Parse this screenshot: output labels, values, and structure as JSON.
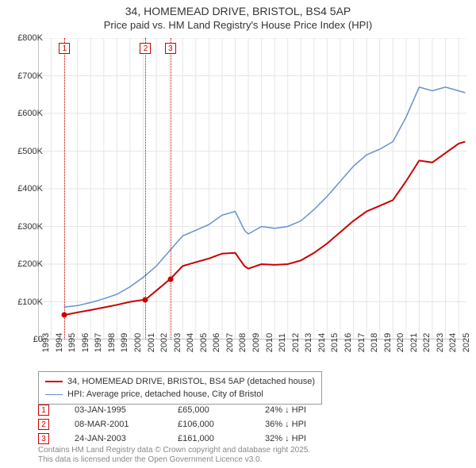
{
  "title": "34, HOMEMEAD DRIVE, BRISTOL, BS4 5AP",
  "subtitle": "Price paid vs. HM Land Registry's House Price Index (HPI)",
  "chart": {
    "type": "line",
    "background_color": "#ffffff",
    "grid_color": "#e6e6e6",
    "axis_color": "#888888",
    "font_family": "Arial",
    "tick_fontsize": 11,
    "title_fontsize": 14,
    "x": {
      "min": 1993,
      "max": 2025.6,
      "ticks": [
        1993,
        1994,
        1995,
        1996,
        1997,
        1998,
        1999,
        2000,
        2001,
        2002,
        2003,
        2004,
        2005,
        2006,
        2007,
        2008,
        2009,
        2010,
        2011,
        2012,
        2013,
        2014,
        2015,
        2016,
        2017,
        2018,
        2019,
        2020,
        2021,
        2022,
        2023,
        2024,
        2025
      ]
    },
    "y": {
      "min": 0,
      "max": 800000,
      "ticks": [
        0,
        100000,
        200000,
        300000,
        400000,
        500000,
        600000,
        700000,
        800000
      ],
      "tick_labels": [
        "£0",
        "£100K",
        "£200K",
        "£300K",
        "£400K",
        "£500K",
        "£600K",
        "£700K",
        "£800K"
      ]
    },
    "series": [
      {
        "name": "property",
        "label": "34, HOMEMEAD DRIVE, BRISTOL, BS4 5AP (detached house)",
        "color": "#cc0000",
        "line_width": 2,
        "data": [
          [
            1995.0,
            65000
          ],
          [
            1996,
            72000
          ],
          [
            1997,
            78000
          ],
          [
            1998,
            85000
          ],
          [
            1999,
            92000
          ],
          [
            2000,
            100000
          ],
          [
            2001.18,
            106000
          ],
          [
            2002,
            130000
          ],
          [
            2003.07,
            161000
          ],
          [
            2004,
            195000
          ],
          [
            2005,
            205000
          ],
          [
            2006,
            215000
          ],
          [
            2007,
            228000
          ],
          [
            2008,
            230000
          ],
          [
            2008.7,
            195000
          ],
          [
            2009,
            188000
          ],
          [
            2010,
            200000
          ],
          [
            2011,
            198000
          ],
          [
            2012,
            200000
          ],
          [
            2013,
            210000
          ],
          [
            2014,
            230000
          ],
          [
            2015,
            255000
          ],
          [
            2016,
            285000
          ],
          [
            2017,
            315000
          ],
          [
            2018,
            340000
          ],
          [
            2019,
            355000
          ],
          [
            2020,
            370000
          ],
          [
            2021,
            420000
          ],
          [
            2022,
            475000
          ],
          [
            2023,
            470000
          ],
          [
            2024,
            495000
          ],
          [
            2025,
            520000
          ],
          [
            2025.5,
            525000
          ]
        ]
      },
      {
        "name": "hpi",
        "label": "HPI: Average price, detached house, City of Bristol",
        "color": "#6a8fd0",
        "line_width": 1.5,
        "data": [
          [
            1995.0,
            86000
          ],
          [
            1996,
            90000
          ],
          [
            1997,
            98000
          ],
          [
            1998,
            108000
          ],
          [
            1999,
            120000
          ],
          [
            2000,
            140000
          ],
          [
            2001,
            165000
          ],
          [
            2002,
            195000
          ],
          [
            2003,
            235000
          ],
          [
            2004,
            275000
          ],
          [
            2005,
            290000
          ],
          [
            2006,
            305000
          ],
          [
            2007,
            330000
          ],
          [
            2008,
            340000
          ],
          [
            2008.7,
            290000
          ],
          [
            2009,
            280000
          ],
          [
            2010,
            300000
          ],
          [
            2011,
            295000
          ],
          [
            2012,
            300000
          ],
          [
            2013,
            315000
          ],
          [
            2014,
            345000
          ],
          [
            2015,
            380000
          ],
          [
            2016,
            420000
          ],
          [
            2017,
            460000
          ],
          [
            2018,
            490000
          ],
          [
            2019,
            505000
          ],
          [
            2020,
            525000
          ],
          [
            2021,
            590000
          ],
          [
            2022,
            670000
          ],
          [
            2023,
            660000
          ],
          [
            2024,
            670000
          ],
          [
            2025,
            660000
          ],
          [
            2025.5,
            655000
          ]
        ]
      }
    ],
    "sale_markers": [
      {
        "n": "1",
        "year": 1995.02,
        "price": 65000,
        "color": "#cc0000"
      },
      {
        "n": "2",
        "year": 2001.18,
        "price": 106000,
        "color": "#cc0000"
      },
      {
        "n": "3",
        "year": 2003.07,
        "price": 161000,
        "color": "#cc0000"
      }
    ]
  },
  "legend": {
    "items": [
      {
        "color": "#cc0000",
        "width": 2,
        "label_path": "chart.series.0.label"
      },
      {
        "color": "#6a8fd0",
        "width": 1.5,
        "label_path": "chart.series.1.label"
      }
    ]
  },
  "sales": [
    {
      "n": "1",
      "date": "03-JAN-1995",
      "price": "£65,000",
      "diff": "24% ↓ HPI",
      "color": "#cc0000"
    },
    {
      "n": "2",
      "date": "08-MAR-2001",
      "price": "£106,000",
      "diff": "36% ↓ HPI",
      "color": "#cc0000"
    },
    {
      "n": "3",
      "date": "24-JAN-2003",
      "price": "£161,000",
      "diff": "32% ↓ HPI",
      "color": "#cc0000"
    }
  ],
  "footer": {
    "line1": "Contains HM Land Registry data © Crown copyright and database right 2025.",
    "line2": "This data is licensed under the Open Government Licence v3.0."
  }
}
